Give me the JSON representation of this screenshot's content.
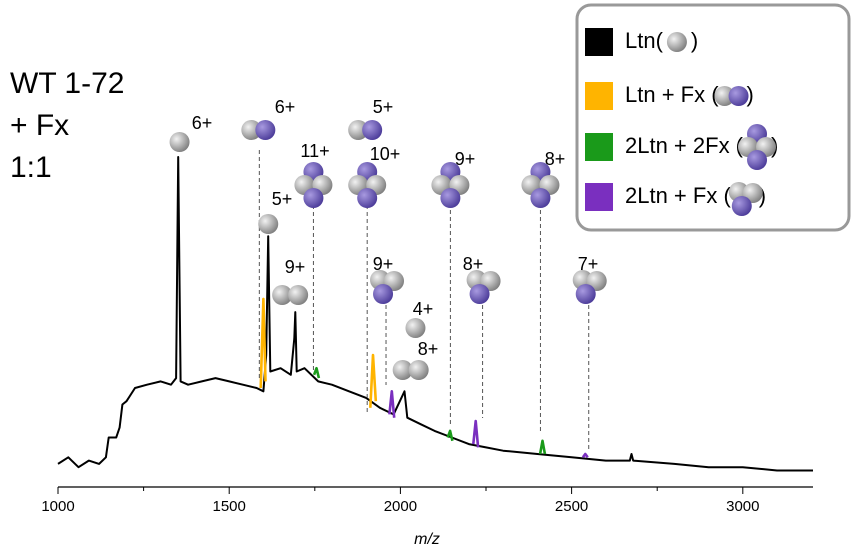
{
  "chart_data": {
    "type": "line",
    "sample_label": [
      "WT 1-72",
      "+ Fx",
      "1:1"
    ],
    "x_label": "m/z",
    "xlim": [
      1000,
      3205
    ],
    "xticks": [
      1000,
      1500,
      2000,
      2500,
      3000
    ],
    "xminorticks": [
      1250,
      1750,
      2250,
      2750
    ],
    "ylim": [
      0,
      100
    ],
    "series": [
      {
        "name": "Ltn()",
        "color": "#000000",
        "x": [
          1000,
          1030,
          1060,
          1090,
          1120,
          1140,
          1148,
          1170,
          1180,
          1188,
          1200,
          1225,
          1260,
          1300,
          1330,
          1345,
          1351,
          1358,
          1380,
          1420,
          1460,
          1500,
          1540,
          1580,
          1600,
          1608,
          1614,
          1620,
          1650,
          1680,
          1690,
          1693,
          1697,
          1720,
          1760,
          1800,
          1850,
          1900,
          1940,
          1980,
          2012,
          2020,
          2060,
          2100,
          2150,
          2200,
          2250,
          2300,
          2400,
          2500,
          2600,
          2670,
          2675,
          2680,
          2800,
          2900,
          3000,
          3100,
          3205
        ],
        "values": [
          7,
          9,
          6,
          8,
          7,
          9,
          15,
          15,
          18,
          25,
          26,
          30,
          31,
          32,
          31,
          33,
          100,
          32,
          31,
          32,
          33,
          32,
          31,
          30,
          29,
          40,
          76,
          35,
          36,
          34,
          45,
          53,
          35,
          36,
          32,
          31,
          29,
          27,
          24,
          22,
          29,
          21,
          19,
          17,
          15,
          13,
          12,
          11,
          10,
          9,
          8,
          8,
          10,
          8,
          7,
          6,
          6,
          5,
          5
        ]
      },
      {
        "name": "Ltn + Fx ()",
        "color": "#ffb400",
        "x": [
          1592,
          1600,
          1606,
          1610,
          1912,
          1920,
          1928
        ],
        "values": [
          30,
          57,
          32,
          null,
          24,
          40,
          26
        ]
      },
      {
        "name": "2Ltn + 2Fx ()",
        "color": "#1a9a1a",
        "x": [
          1748,
          1755,
          1762,
          1765,
          2138,
          2145,
          2152,
          2155,
          2408,
          2415,
          2422
        ],
        "values": [
          34,
          36,
          33,
          null,
          15,
          17,
          14,
          null,
          10,
          14,
          10
        ]
      },
      {
        "name": "2Ltn + Fx ()",
        "color": "#7a2fbf",
        "x": [
          1968,
          1975,
          1982,
          1985,
          2213,
          2220,
          2227,
          2230,
          2533,
          2540,
          2547
        ],
        "values": [
          22,
          29,
          21,
          null,
          13,
          20,
          12,
          null,
          9,
          10,
          9
        ]
      }
    ],
    "annotations": [
      {
        "text": "6+",
        "x": 1355
      },
      {
        "text": "6+",
        "x": 1588
      },
      {
        "text": "11+",
        "x": 1746
      },
      {
        "text": "5+",
        "x": 1614
      },
      {
        "text": "9+",
        "x": 1678
      },
      {
        "text": "5+",
        "x": 1900
      },
      {
        "text": "10+",
        "x": 1903
      },
      {
        "text": "9+",
        "x": 2146
      },
      {
        "text": "8+",
        "x": 2409
      },
      {
        "text": "9+",
        "x": 1958
      },
      {
        "text": "4+",
        "x": 2044
      },
      {
        "text": "8+",
        "x": 2030
      },
      {
        "text": "8+",
        "x": 2240
      },
      {
        "text": "7+",
        "x": 2550
      }
    ]
  }
}
